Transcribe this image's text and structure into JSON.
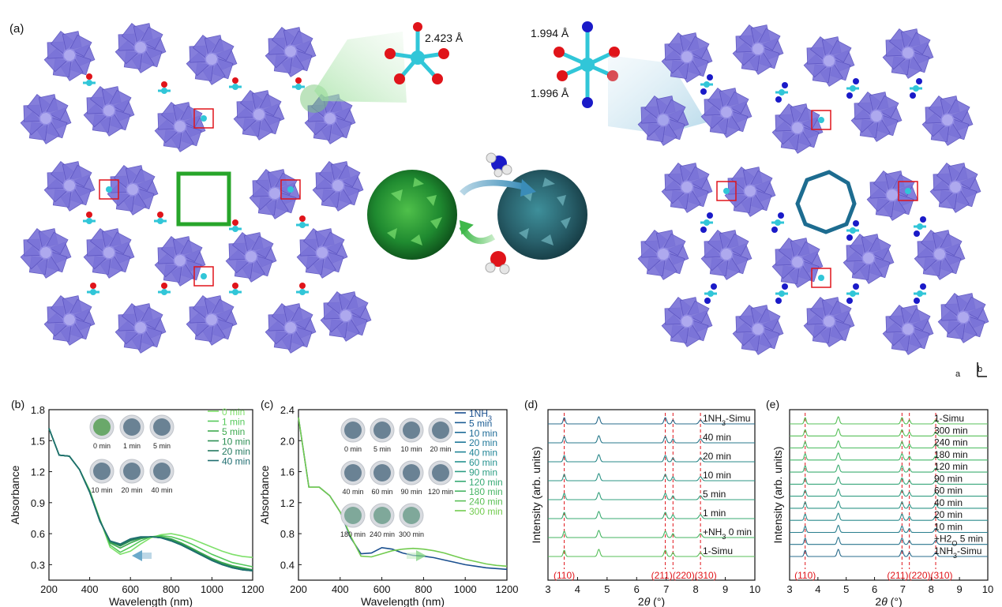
{
  "panel_a": {
    "label": "(a)",
    "bond_left": "2.423 Å",
    "bond_right_top": "1.994 Å",
    "bond_right_bottom": "1.996 Å",
    "axis_b": "b",
    "axis_a": "a"
  },
  "colors": {
    "polyhedra": "#7b74d8",
    "cu": "#31c6d8",
    "oxygen": "#e0141a",
    "nitrogen": "#1a1ac8",
    "green_frame": "#27a52a",
    "teal_ring": "#1d6c90"
  },
  "chart_data": [
    {
      "panel": "(b)",
      "type": "line",
      "xlabel": "Wavelength (nm)",
      "ylabel": "Absorbance",
      "xlim": [
        200,
        1200
      ],
      "ylim": [
        0.15,
        1.8
      ],
      "xticks": [
        "200",
        "400",
        "600",
        "800",
        "1000",
        "1200"
      ],
      "yticks": [
        "0.3",
        "0.6",
        "0.9",
        "1.2",
        "1.5",
        "1.8"
      ],
      "legend": [
        "0  min",
        "1  min",
        "5  min",
        "10  min",
        "20  min",
        "40  min"
      ],
      "legend_colors": [
        "#7ee06a",
        "#55c95a",
        "#3eaa4f",
        "#2d8f55",
        "#247a60",
        "#1e6d70"
      ],
      "inset_labels": [
        "0 min",
        "1 min",
        "5 min",
        "10 min",
        "20 min",
        "40 min"
      ],
      "x": [
        200,
        250,
        300,
        350,
        400,
        450,
        500,
        550,
        600,
        650,
        700,
        750,
        800,
        850,
        900,
        950,
        1000,
        1050,
        1100,
        1150,
        1200
      ],
      "series": [
        {
          "name": "0  min",
          "values": [
            1.62,
            1.36,
            1.35,
            1.22,
            1.02,
            0.74,
            0.47,
            0.4,
            0.43,
            0.5,
            0.56,
            0.59,
            0.6,
            0.58,
            0.55,
            0.51,
            0.47,
            0.43,
            0.4,
            0.38,
            0.37
          ]
        },
        {
          "name": "1  min",
          "values": [
            1.62,
            1.36,
            1.35,
            1.22,
            1.01,
            0.74,
            0.49,
            0.42,
            0.47,
            0.53,
            0.57,
            0.58,
            0.57,
            0.54,
            0.5,
            0.45,
            0.4,
            0.36,
            0.32,
            0.3,
            0.28
          ]
        },
        {
          "name": "5  min",
          "values": [
            1.62,
            1.36,
            1.35,
            1.22,
            1.01,
            0.73,
            0.51,
            0.46,
            0.51,
            0.55,
            0.57,
            0.57,
            0.55,
            0.51,
            0.46,
            0.41,
            0.36,
            0.32,
            0.29,
            0.27,
            0.25
          ]
        },
        {
          "name": "10  min",
          "values": [
            1.62,
            1.36,
            1.35,
            1.22,
            1.0,
            0.73,
            0.52,
            0.48,
            0.53,
            0.56,
            0.57,
            0.56,
            0.54,
            0.5,
            0.45,
            0.4,
            0.35,
            0.31,
            0.28,
            0.26,
            0.25
          ]
        },
        {
          "name": "20  min",
          "values": [
            1.62,
            1.36,
            1.35,
            1.22,
            1.0,
            0.72,
            0.53,
            0.49,
            0.54,
            0.56,
            0.57,
            0.56,
            0.53,
            0.49,
            0.44,
            0.39,
            0.34,
            0.3,
            0.27,
            0.25,
            0.24
          ]
        },
        {
          "name": "40  min",
          "values": [
            1.62,
            1.36,
            1.35,
            1.22,
            1.0,
            0.72,
            0.53,
            0.5,
            0.55,
            0.57,
            0.57,
            0.56,
            0.53,
            0.49,
            0.44,
            0.39,
            0.34,
            0.3,
            0.27,
            0.25,
            0.24
          ]
        }
      ]
    },
    {
      "panel": "(c)",
      "type": "line",
      "xlabel": "Wavelength (nm)",
      "ylabel": "Absorbance",
      "xlim": [
        200,
        1200
      ],
      "ylim": [
        0.2,
        2.4
      ],
      "xticks": [
        "200",
        "400",
        "600",
        "800",
        "1000",
        "1200"
      ],
      "yticks": [
        "0.4",
        "0.8",
        "1.2",
        "1.6",
        "2.0",
        "2.4"
      ],
      "legend": [
        "1NH3",
        "5  min",
        "10  min",
        "20  min",
        "40  min",
        "60  min",
        "90  min",
        "120 min",
        "180 min",
        "240 min",
        "300 min"
      ],
      "legend_colors": [
        "#1a4f8f",
        "#1b5d94",
        "#1d6b97",
        "#1f7899",
        "#218597",
        "#269290",
        "#2d9e84",
        "#38aa75",
        "#48b565",
        "#5cc058",
        "#72cb4f"
      ],
      "inset_labels": [
        "0 min",
        "5 min",
        "10 min",
        "20 min",
        "40 min",
        "60 min",
        "90 min",
        "120 min",
        "180 min",
        "240 min",
        "300 min"
      ],
      "x": [
        200,
        250,
        300,
        350,
        400,
        450,
        500,
        550,
        600,
        650,
        700,
        750,
        800,
        850,
        900,
        950,
        1000,
        1050,
        1100,
        1150,
        1200
      ],
      "series": [
        {
          "name": "1NH3",
          "values": [
            2.3,
            1.4,
            1.4,
            1.29,
            1.08,
            0.75,
            0.54,
            0.55,
            0.62,
            0.6,
            0.55,
            0.52,
            0.51,
            0.49,
            0.46,
            0.43,
            0.4,
            0.38,
            0.36,
            0.35,
            0.34
          ]
        },
        {
          "name": "300 min",
          "values": [
            2.3,
            1.4,
            1.4,
            1.29,
            1.08,
            0.77,
            0.51,
            0.5,
            0.54,
            0.58,
            0.6,
            0.61,
            0.6,
            0.58,
            0.55,
            0.51,
            0.47,
            0.44,
            0.41,
            0.39,
            0.38
          ]
        }
      ]
    },
    {
      "panel": "(d)",
      "type": "line",
      "xlabel": "2θ (°)",
      "ylabel": "Intensity (arb. units)",
      "xlim": [
        3,
        10
      ],
      "xticks": [
        "3",
        "4",
        "5",
        "6",
        "7",
        "8",
        "9",
        "10"
      ],
      "dashed_lines_x": [
        3.55,
        6.97,
        7.23,
        8.16
      ],
      "peak_labels": [
        "(110)",
        "(211)(220)(310)"
      ],
      "series_labels": [
        "1NH3-Simu",
        "40 min",
        "20 min",
        "10 min",
        "5 min",
        "1 min",
        "+NH3 0 min",
        "1-Simu"
      ]
    },
    {
      "panel": "(e)",
      "type": "line",
      "xlabel": "2θ (°)",
      "ylabel": "Intensity (arb. units)",
      "xlim": [
        3,
        10
      ],
      "xticks": [
        "3",
        "4",
        "5",
        "6",
        "7",
        "8",
        "9",
        "10"
      ],
      "dashed_lines_x": [
        3.55,
        6.97,
        7.23,
        8.16
      ],
      "peak_labels": [
        "(110)",
        "(211)(220)(310)"
      ],
      "series_labels": [
        "1-Simu",
        "300 min",
        "240 min",
        "180 min",
        "120 min",
        "90 min",
        "60 min",
        "40 min",
        "20 min",
        "10 min",
        "+H2O 5 min",
        "1NH3-Simu"
      ]
    }
  ]
}
